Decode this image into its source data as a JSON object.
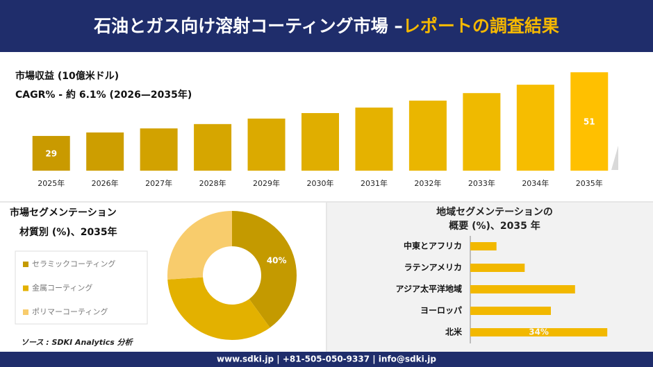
{
  "header": {
    "title": "石油とガス向け溶射コーティング市場 –",
    "highlight": "レポートの調査結果"
  },
  "chart_data": [
    {
      "type": "bar",
      "title": "市場収益 (10億米ドル)",
      "subtitle": "CAGR% - 約 6.1% (2026—2035年)",
      "categories": [
        "2025年",
        "2026年",
        "2027年",
        "2028年",
        "2029年",
        "2030年",
        "2031年",
        "2032年",
        "2033年",
        "2034年",
        "2035年"
      ],
      "values": [
        29,
        30.2,
        31.6,
        33.1,
        35,
        36.9,
        38.8,
        41.2,
        43.8,
        46.7,
        51
      ],
      "value_labels": [
        "29",
        null,
        null,
        null,
        null,
        null,
        null,
        null,
        null,
        null,
        "51"
      ],
      "colors": [
        "#C99A00",
        "#CD9E00",
        "#D2A200",
        "#D6A600",
        "#DBAA00",
        "#E0AE00",
        "#E5B200",
        "#EAB600",
        "#EFBA00",
        "#F6BD00",
        "#FFC000"
      ],
      "ylim": [
        17,
        52
      ]
    },
    {
      "type": "pie",
      "title": "市場セグメンテーション",
      "subtitle": "材質別 (%)、2035年",
      "categories": [
        "セラミックコーティング",
        "金属コーティング",
        "ポリマーコーティング"
      ],
      "values": [
        40,
        34,
        26
      ],
      "value_labels": [
        "40%",
        null,
        null
      ],
      "colors": [
        "#C49A00",
        "#E3B100",
        "#F8CC6C"
      ],
      "donut": true
    },
    {
      "type": "hbar",
      "title": "地域セグメンテーションの",
      "subtitle": "概要 (%)、2035 年",
      "categories": [
        "中東とアフリカ",
        "ラテンアメリカ",
        "アジア太平洋地域",
        "ヨーロッパ",
        "北米"
      ],
      "values": [
        6.5,
        13.5,
        26,
        20,
        34
      ],
      "value_labels": [
        null,
        null,
        null,
        null,
        "34%"
      ],
      "color": "#F2B800",
      "xlim": [
        0,
        35
      ]
    }
  ],
  "source": "ソース : SDKI Analytics 分析",
  "footer": "www.sdki.jp | +81-505-050-9337 | info@sdki.jp"
}
